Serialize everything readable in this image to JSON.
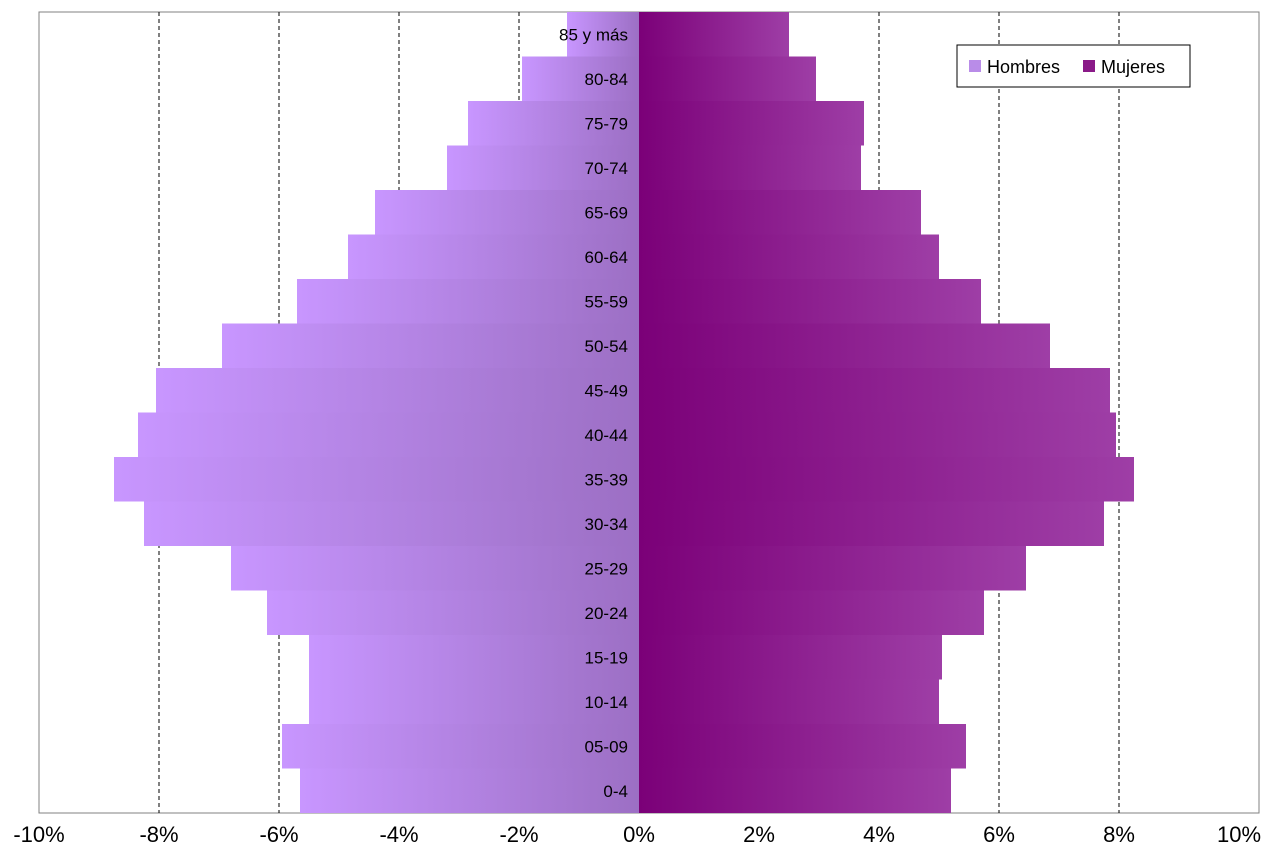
{
  "chart_data": {
    "type": "bar",
    "orientation": "horizontal",
    "title": "",
    "xlabel": "",
    "ylabel": "",
    "categories": [
      "0-4",
      "05-09",
      "10-14",
      "15-19",
      "20-24",
      "25-29",
      "30-34",
      "35-39",
      "40-44",
      "45-49",
      "50-54",
      "55-59",
      "60-64",
      "65-69",
      "70-74",
      "75-79",
      "80-84",
      "85 y más"
    ],
    "series": [
      {
        "name": "Hombres",
        "values": [
          -5.65,
          -5.95,
          -5.5,
          -5.5,
          -6.2,
          -6.8,
          -8.25,
          -8.75,
          -8.35,
          -8.05,
          -6.95,
          -5.7,
          -4.85,
          -4.4,
          -3.2,
          -2.85,
          -1.95,
          -1.2
        ]
      },
      {
        "name": "Mujeres",
        "values": [
          5.2,
          5.45,
          5.0,
          5.05,
          5.75,
          6.45,
          7.75,
          8.25,
          7.95,
          7.85,
          6.85,
          5.7,
          5.0,
          4.7,
          3.7,
          3.75,
          2.95,
          2.5
        ]
      }
    ],
    "xlim": [
      -10,
      10
    ],
    "xticks": [
      -10,
      -8,
      -6,
      -4,
      -2,
      0,
      2,
      4,
      6,
      8,
      10
    ],
    "tick_suffix": "%",
    "grid": "vertical dashed",
    "legend_position": "top-right",
    "colors": {
      "hombres": "#c896ff",
      "hombres_inner": "#9c6fc4",
      "mujeres": "#7b0078",
      "mujeres_outer": "#9e3ea6"
    }
  },
  "legend": {
    "hombres_label": "Hombres",
    "mujeres_label": "Mujeres"
  }
}
